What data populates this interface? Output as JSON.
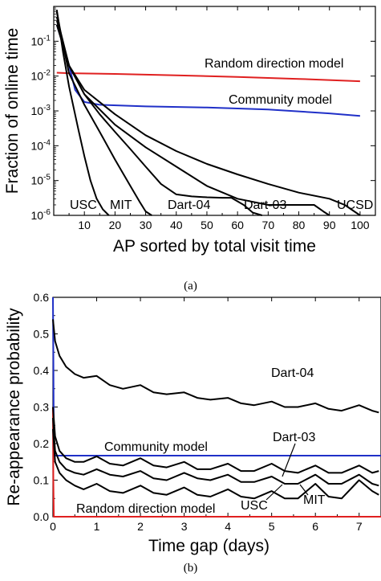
{
  "chart_data": [
    {
      "type": "line",
      "panel_caption": "(a)",
      "xlabel": "AP sorted by total visit time",
      "ylabel": "Fraction of online time",
      "xlim": [
        0,
        105
      ],
      "ylim": [
        1e-06,
        1
      ],
      "yscale": "log",
      "grid": false,
      "x_ticks": [
        "10",
        "20",
        "30",
        "40",
        "50",
        "60",
        "70",
        "80",
        "90",
        "100"
      ],
      "y_ticks": [
        "10-6",
        "10-5",
        "10-4",
        "10-3",
        "10-2",
        "10-1"
      ],
      "series": [
        {
          "name": "Random direction model",
          "color": "#e02020",
          "x": [
            1,
            5,
            20,
            40,
            60,
            80,
            100
          ],
          "y": [
            0.0125,
            0.0121,
            0.0115,
            0.0105,
            0.0094,
            0.0083,
            0.0071
          ]
        },
        {
          "name": "Community model",
          "color": "#2030c8",
          "x": [
            1,
            3,
            5,
            7,
            10,
            15,
            30,
            50,
            70,
            90,
            100
          ],
          "y": [
            0.3,
            0.08,
            0.02,
            0.004,
            0.0018,
            0.0015,
            0.00135,
            0.00125,
            0.0011,
            0.00085,
            0.00072
          ]
        },
        {
          "name": "USC",
          "color": "#000000",
          "x": [
            1,
            3,
            5,
            8,
            10,
            12,
            14,
            16,
            18
          ],
          "y": [
            0.8,
            0.05,
            0.005,
            0.0003,
            5e-05,
            1e-05,
            3e-06,
            1.5e-06,
            1e-06
          ]
        },
        {
          "name": "MIT",
          "color": "#000000",
          "x": [
            1,
            3,
            5,
            10,
            15,
            20,
            25,
            28,
            30,
            32
          ],
          "y": [
            0.7,
            0.08,
            0.012,
            0.0015,
            0.00025,
            4e-05,
            7e-06,
            2.5e-06,
            1.3e-06,
            1e-06
          ]
        },
        {
          "name": "Dart-04",
          "color": "#000000",
          "x": [
            1,
            5,
            10,
            15,
            20,
            25,
            30,
            35,
            40,
            45,
            50,
            55,
            58,
            62,
            65,
            68
          ],
          "y": [
            0.5,
            0.02,
            0.003,
            0.0008,
            0.00025,
            8e-05,
            2.5e-05,
            8e-06,
            4e-06,
            3.5e-06,
            3.3e-06,
            3.2e-06,
            3.2e-06,
            2e-06,
            1.2e-06,
            1e-06
          ]
        },
        {
          "name": "Dart-03",
          "color": "#000000",
          "x": [
            1,
            5,
            10,
            20,
            30,
            40,
            50,
            60,
            70,
            80,
            85,
            88,
            90
          ],
          "y": [
            0.4,
            0.02,
            0.003,
            0.0004,
            9e-05,
            2.5e-05,
            7e-06,
            3e-06,
            2e-06,
            2e-06,
            2e-06,
            1.3e-06,
            1e-06
          ]
        },
        {
          "name": "UCSD",
          "color": "#000000",
          "x": [
            1,
            5,
            10,
            20,
            30,
            40,
            50,
            60,
            70,
            80,
            90,
            95,
            100
          ],
          "y": [
            0.3,
            0.02,
            0.004,
            0.0008,
            0.0002,
            7e-05,
            3e-05,
            1.5e-05,
            8e-06,
            4.5e-06,
            3e-06,
            2e-06,
            1e-06
          ]
        }
      ]
    },
    {
      "type": "line",
      "panel_caption": "(b)",
      "xlabel": "Time gap (days)",
      "ylabel": "Re-appearance probability",
      "xlim": [
        0,
        7.5
      ],
      "ylim": [
        0,
        0.6
      ],
      "grid": false,
      "x_ticks": [
        "0",
        "1",
        "2",
        "3",
        "4",
        "5",
        "6",
        "7"
      ],
      "y_ticks": [
        "0.0",
        "0.1",
        "0.2",
        "0.3",
        "0.4",
        "0.5",
        "0.6"
      ],
      "series": [
        {
          "name": "Community model",
          "color": "#2030c8",
          "x": [
            0,
            0.01,
            0.02,
            0.04,
            7.5
          ],
          "y": [
            0.6,
            0.45,
            0.2,
            0.167,
            0.167
          ]
        },
        {
          "name": "Random direction model",
          "color": "#e02020",
          "x": [
            0,
            0.01,
            0.02,
            7.5
          ],
          "y": [
            0.3,
            0.1,
            0.0,
            0.0
          ]
        },
        {
          "name": "Dart-04",
          "color": "#000000",
          "x": [
            0,
            0.05,
            0.15,
            0.3,
            0.5,
            0.7,
            1.0,
            1.3,
            1.6,
            2.0,
            2.3,
            2.6,
            3.0,
            3.3,
            3.6,
            4.0,
            4.3,
            4.6,
            5.0,
            5.3,
            5.6,
            6.0,
            6.3,
            6.6,
            7.0,
            7.3,
            7.45
          ],
          "y": [
            0.54,
            0.48,
            0.44,
            0.41,
            0.39,
            0.38,
            0.385,
            0.36,
            0.35,
            0.36,
            0.34,
            0.335,
            0.34,
            0.325,
            0.32,
            0.325,
            0.31,
            0.305,
            0.315,
            0.3,
            0.3,
            0.31,
            0.295,
            0.29,
            0.305,
            0.29,
            0.285
          ]
        },
        {
          "name": "Dart-03",
          "color": "#000000",
          "x": [
            0,
            0.05,
            0.15,
            0.3,
            0.5,
            0.7,
            1.0,
            1.3,
            1.6,
            2.0,
            2.3,
            2.6,
            3.0,
            3.3,
            3.6,
            4.0,
            4.3,
            4.6,
            5.0,
            5.3,
            5.6,
            6.0,
            6.3,
            6.6,
            7.0,
            7.3,
            7.45
          ],
          "y": [
            0.3,
            0.22,
            0.18,
            0.16,
            0.15,
            0.15,
            0.165,
            0.145,
            0.14,
            0.16,
            0.14,
            0.135,
            0.15,
            0.13,
            0.13,
            0.145,
            0.125,
            0.125,
            0.145,
            0.125,
            0.12,
            0.14,
            0.12,
            0.12,
            0.14,
            0.12,
            0.125
          ]
        },
        {
          "name": "USC",
          "color": "#000000",
          "x": [
            0,
            0.05,
            0.15,
            0.3,
            0.5,
            0.7,
            1.0,
            1.3,
            1.6,
            2.0,
            2.3,
            2.6,
            3.0,
            3.3,
            3.6,
            4.0,
            4.3,
            4.6,
            5.0,
            5.3,
            5.6,
            6.0,
            6.3,
            6.6,
            7.0,
            7.3,
            7.45
          ],
          "y": [
            0.27,
            0.18,
            0.15,
            0.13,
            0.12,
            0.115,
            0.13,
            0.115,
            0.11,
            0.125,
            0.105,
            0.1,
            0.12,
            0.105,
            0.1,
            0.115,
            0.095,
            0.095,
            0.11,
            0.09,
            0.09,
            0.115,
            0.09,
            0.09,
            0.115,
            0.09,
            0.085
          ]
        },
        {
          "name": "MIT",
          "color": "#000000",
          "x": [
            0,
            0.05,
            0.15,
            0.3,
            0.5,
            0.7,
            1.0,
            1.3,
            1.6,
            2.0,
            2.3,
            2.6,
            3.0,
            3.3,
            3.6,
            4.0,
            4.3,
            4.6,
            5.0,
            5.3,
            5.6,
            6.0,
            6.3,
            6.6,
            7.0,
            7.3,
            7.45
          ],
          "y": [
            0.24,
            0.15,
            0.12,
            0.1,
            0.085,
            0.075,
            0.09,
            0.07,
            0.065,
            0.085,
            0.065,
            0.06,
            0.08,
            0.06,
            0.055,
            0.075,
            0.055,
            0.05,
            0.07,
            0.05,
            0.05,
            0.09,
            0.055,
            0.05,
            0.1,
            0.07,
            0.06
          ]
        }
      ]
    }
  ]
}
